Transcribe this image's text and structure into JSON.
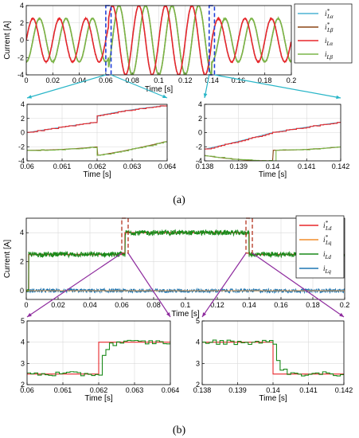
{
  "panels": [
    {
      "label": "(a)"
    },
    {
      "label": "(b)"
    }
  ],
  "chart_data": [
    {
      "id": "a_main",
      "type": "line",
      "xlabel": "Time [s]",
      "ylabel": "Current [A]",
      "xlim": [
        0,
        0.2
      ],
      "ylim": [
        -4,
        4
      ],
      "xticks": [
        0,
        0.02,
        0.04,
        0.06,
        0.08,
        0.1,
        0.12,
        0.14,
        0.16,
        0.18,
        0.2
      ],
      "xtick_labels": [
        "0",
        "0.02",
        "0.04",
        "0.06",
        "0.08",
        "0.1",
        "0.12",
        "0.14",
        "0.16",
        "0.18",
        "0.2"
      ],
      "yticks": [
        -4,
        -2,
        0,
        2,
        4
      ],
      "grid": true,
      "legend_position": "top-right",
      "description_of_signal": "two-phase sinusoidal currents, 50 Hz, amplitude 2.5 A before 0.062 s, 4 A between 0.062 s and 0.14 s, 2.5 A after 0.14 s",
      "series": [
        {
          "name": "i*Lα",
          "label_main": "i",
          "label_sub": "Lα",
          "star": true,
          "color": "#4cb3d4"
        },
        {
          "name": "i*Lβ",
          "label_main": "i",
          "label_sub": "Lβ",
          "star": true,
          "color": "#8b4513"
        },
        {
          "name": "iLα",
          "label_main": "i",
          "label_sub": "Lα",
          "star": false,
          "color": "#e8262a"
        },
        {
          "name": "iLβ",
          "label_main": "i",
          "label_sub": "Lβ",
          "star": false,
          "color": "#7ab648"
        }
      ],
      "zoom_boxes": [
        [
          0.06,
          0.064
        ],
        [
          0.138,
          0.142
        ]
      ]
    },
    {
      "id": "a_zoom1",
      "type": "line",
      "xlabel": "Time [s]",
      "xlim": [
        0.06,
        0.064
      ],
      "ylim": [
        -4,
        4
      ],
      "xticks": [
        0.06,
        0.061,
        0.062,
        0.063,
        0.064
      ],
      "xtick_labels": [
        "0.06",
        "0.061",
        "0.062",
        "0.063",
        "0.064"
      ],
      "yticks": [
        -4,
        -2,
        0,
        2,
        4
      ],
      "grid": true
    },
    {
      "id": "a_zoom2",
      "type": "line",
      "xlabel": "Time [s]",
      "xlim": [
        0.138,
        0.142
      ],
      "ylim": [
        -4,
        4
      ],
      "xticks": [
        0.138,
        0.139,
        0.14,
        0.141,
        0.142
      ],
      "xtick_labels": [
        "0.138",
        "0.139",
        "0.14",
        "0.141",
        "0.142"
      ],
      "yticks": [
        -4,
        -2,
        0,
        2,
        4
      ],
      "grid": true
    },
    {
      "id": "b_main",
      "type": "line",
      "xlabel": "Time [s]",
      "ylabel": "Current [A]",
      "xlim": [
        0,
        0.2
      ],
      "ylim": [
        -0.6,
        5
      ],
      "xticks": [
        0,
        0.02,
        0.04,
        0.06,
        0.08,
        0.1,
        0.12,
        0.14,
        0.16,
        0.18,
        0.2
      ],
      "xtick_labels": [
        "0",
        "0.02",
        "0.04",
        "0.06",
        "0.08",
        "0.1",
        "0.12",
        "0.14",
        "0.16",
        "0.18",
        "0.2"
      ],
      "yticks": [
        0,
        2,
        4
      ],
      "grid": true,
      "legend_position": "top-right",
      "description_of_signal": "d-axis current steps 2.5 → 4 A at 0.062 s and back to 2.5 A at 0.14 s; q-axis current ≈ 0 A",
      "series": [
        {
          "name": "i*Ld",
          "label_main": "i",
          "label_sub": "Ld",
          "star": true,
          "color": "#e8262a"
        },
        {
          "name": "i*Lq",
          "label_main": "i",
          "label_sub": "Lq",
          "star": true,
          "color": "#f28e2b"
        },
        {
          "name": "iLd",
          "label_main": "i",
          "label_sub": "Ld",
          "star": false,
          "color": "#1a8a1a"
        },
        {
          "name": "iLq",
          "label_main": "i",
          "label_sub": "Lq",
          "star": false,
          "color": "#1f77b4"
        }
      ],
      "zoom_boxes": [
        [
          0.06,
          0.064
        ],
        [
          0.138,
          0.142
        ]
      ]
    },
    {
      "id": "b_zoom1",
      "type": "line",
      "xlabel": "Time [s]",
      "xlim": [
        0.06,
        0.064
      ],
      "ylim": [
        2,
        5
      ],
      "xticks": [
        0.06,
        0.061,
        0.062,
        0.063,
        0.064
      ],
      "xtick_labels": [
        "0.06",
        "0.061",
        "0.062",
        "0.063",
        "0.064"
      ],
      "yticks": [
        2,
        3,
        4,
        5
      ],
      "grid": true
    },
    {
      "id": "b_zoom2",
      "type": "line",
      "xlabel": "Time [s]",
      "xlim": [
        0.138,
        0.142
      ],
      "ylim": [
        2,
        5
      ],
      "xticks": [
        0.138,
        0.139,
        0.14,
        0.141,
        0.142
      ],
      "xtick_labels": [
        "0.138",
        "0.139",
        "0.14",
        "0.141",
        "0.142"
      ],
      "yticks": [
        2,
        3,
        4,
        5
      ],
      "grid": true
    }
  ],
  "colors": {
    "zoom_box_a": "#1f3fd8",
    "zoom_arrow_a": "#29b6c8",
    "zoom_box_b": "#b5341f",
    "zoom_arrow_b": "#8e2b9e",
    "grid": "#d9d9d9"
  }
}
